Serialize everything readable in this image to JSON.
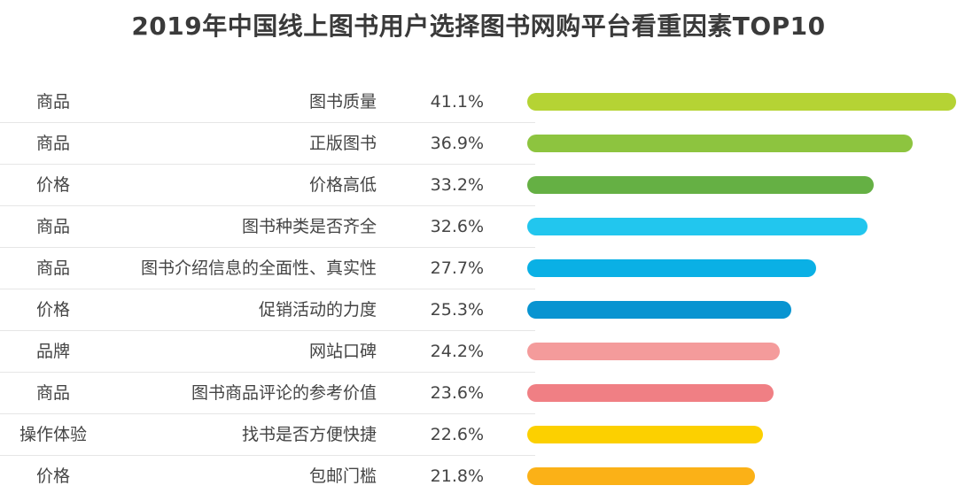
{
  "chart_data": {
    "type": "bar",
    "orientation": "horizontal",
    "title": "2019年中国线上图书用户选择图书网购平台看重因素TOP10",
    "categories": [
      "图书质量",
      "正版图书",
      "价格高低",
      "图书种类是否齐全",
      "图书介绍信息的全面性、真实性",
      "促销活动的力度",
      "网站口碑",
      "图书商品评论的参考价值",
      "找书是否方便快捷",
      "包邮门槛"
    ],
    "groups": [
      "商品",
      "商品",
      "价格",
      "商品",
      "商品",
      "价格",
      "品牌",
      "商品",
      "操作体验",
      "价格"
    ],
    "values": [
      41.1,
      36.9,
      33.2,
      32.6,
      27.7,
      25.3,
      24.2,
      23.6,
      22.6,
      21.8
    ],
    "value_labels": [
      "41.1%",
      "36.9%",
      "33.2%",
      "32.6%",
      "27.7%",
      "25.3%",
      "24.2%",
      "23.6%",
      "22.6%",
      "21.8%"
    ],
    "bar_colors": [
      "#b5d334",
      "#8dc43f",
      "#65b044",
      "#22c6ee",
      "#0ab0e5",
      "#0894d1",
      "#f49b9b",
      "#f07f84",
      "#fcd000",
      "#fbb117"
    ],
    "xlim": [
      0,
      41.1
    ],
    "grid": false,
    "legend": "none"
  }
}
